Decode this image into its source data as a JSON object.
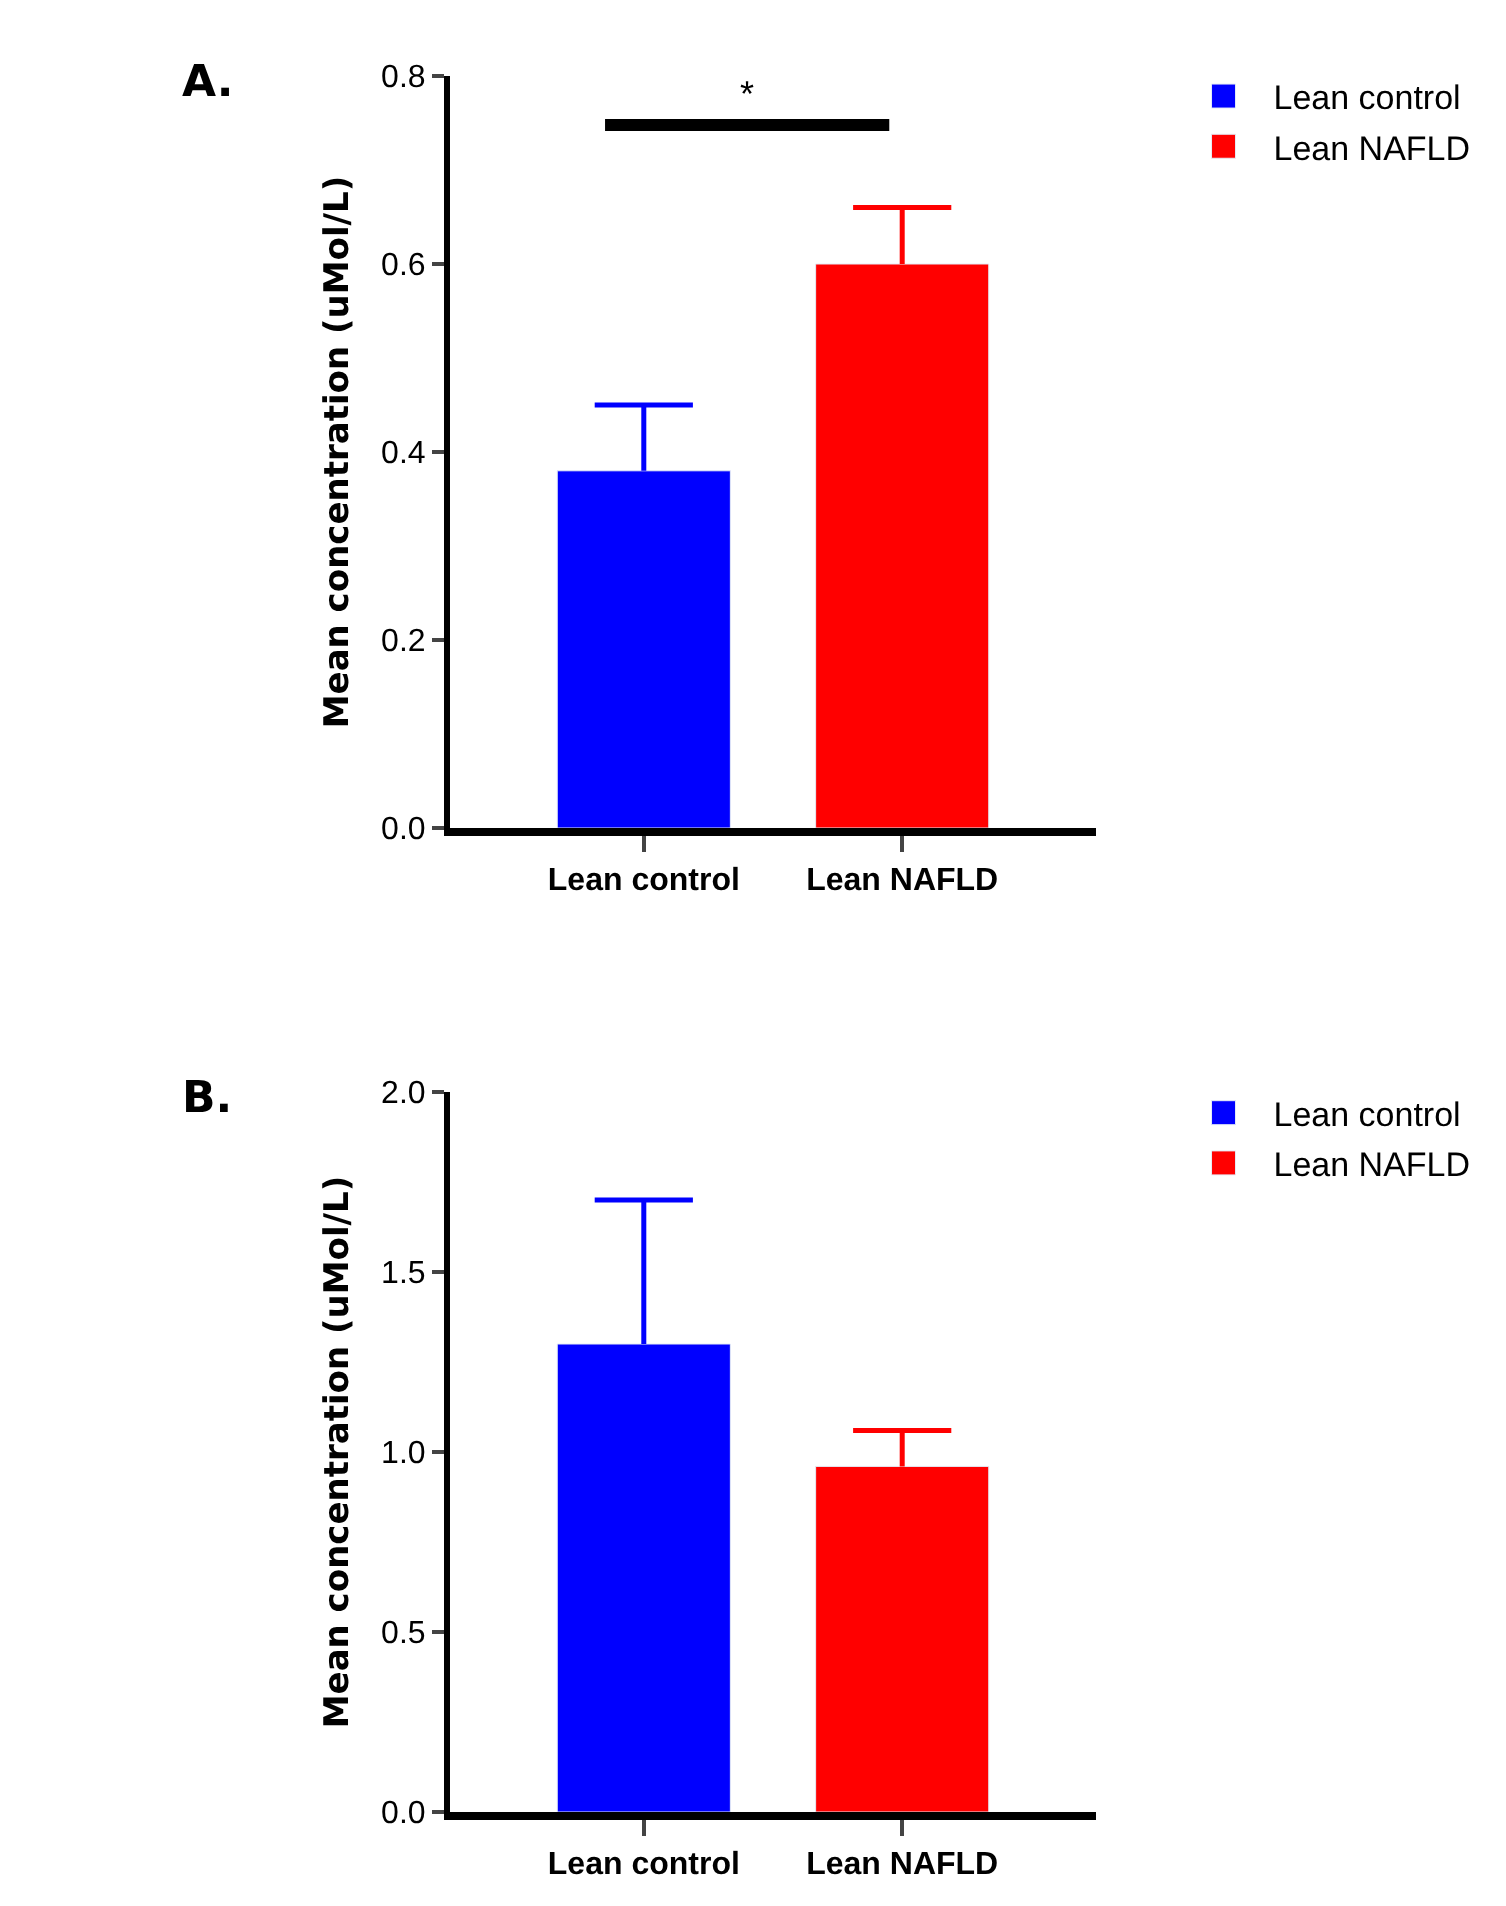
{
  "chart_data": [
    {
      "type": "bar",
      "title": "A.",
      "ylabel": "Mean concentration (uMol/L)",
      "categories": [
        "Lean control",
        "Lean NAFLD"
      ],
      "series": [
        {
          "name": "Lean control",
          "color": "#0000ff",
          "values": [
            0.38,
            null
          ],
          "errors": [
            [
              0.38,
              0.45
            ],
            null
          ]
        },
        {
          "name": "Lean NAFLD",
          "color": "#ff0000",
          "values": [
            null,
            0.6
          ],
          "errors": [
            null,
            [
              0.6,
              0.66
            ]
          ]
        }
      ],
      "ylim": [
        0,
        0.8
      ],
      "yticks": [
        {
          "value": 0,
          "label": "0.0"
        },
        0.2,
        0.4,
        0.6,
        0.8
      ],
      "legend": "top right",
      "annotations": [
        "*"
      ]
    },
    {
      "type": "bar",
      "title": "B.",
      "ylabel": "Mean concentration (uMol/L)",
      "categories": [
        "Lean control",
        "Lean NAFLD"
      ],
      "series": [
        {
          "name": "Lean control",
          "color": "#0000ff",
          "values": [
            1.3,
            null
          ],
          "errors": [
            [
              1.3,
              1.7
            ],
            null
          ]
        },
        {
          "name": "Lean NAFLD",
          "color": "#ff0000",
          "values": [
            null,
            0.96
          ],
          "errors": [
            null,
            [
              0.96,
              1.06
            ]
          ]
        }
      ],
      "ylim": [
        0,
        2.0
      ],
      "yticks": [
        {
          "value": 0,
          "label": "0.0"
        },
        0.5,
        {
          "value": 1,
          "label": "1.0"
        },
        1.5,
        {
          "value": 2,
          "label": "2.0"
        }
      ],
      "legend": "top right"
    }
  ]
}
